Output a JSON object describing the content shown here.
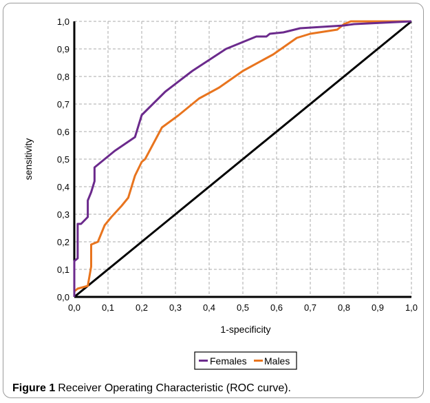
{
  "figure": {
    "label": "Figure 1",
    "caption": "Receiver Operating Characteristic (ROC curve)."
  },
  "chart_data": {
    "type": "line",
    "xlabel": "1-specificity",
    "ylabel": "sensitivity",
    "xlim": [
      0,
      1
    ],
    "ylim": [
      0,
      1
    ],
    "x_ticks": [
      "0,0",
      "0,1",
      "0,2",
      "0,3",
      "0,4",
      "0,5",
      "0,6",
      "0,7",
      "0,8",
      "0,9",
      "1,0"
    ],
    "y_ticks": [
      "0,0",
      "0,1",
      "0,2",
      "0,3",
      "0,4",
      "0,5",
      "0,6",
      "0,7",
      "0,8",
      "0,9",
      "1,0"
    ],
    "grid": true,
    "legend_position": "bottom",
    "series": [
      {
        "name": "Females",
        "color": "#6b2a8c",
        "points": [
          [
            0,
            0
          ],
          [
            0.0,
            0.13
          ],
          [
            0.01,
            0.14
          ],
          [
            0.01,
            0.265
          ],
          [
            0.02,
            0.265
          ],
          [
            0.04,
            0.29
          ],
          [
            0.04,
            0.35
          ],
          [
            0.05,
            0.38
          ],
          [
            0.06,
            0.42
          ],
          [
            0.06,
            0.47
          ],
          [
            0.07,
            0.48
          ],
          [
            0.12,
            0.53
          ],
          [
            0.18,
            0.58
          ],
          [
            0.2,
            0.66
          ],
          [
            0.27,
            0.745
          ],
          [
            0.35,
            0.82
          ],
          [
            0.45,
            0.9
          ],
          [
            0.54,
            0.945
          ],
          [
            0.57,
            0.945
          ],
          [
            0.58,
            0.955
          ],
          [
            0.62,
            0.96
          ],
          [
            0.67,
            0.975
          ],
          [
            0.8,
            0.985
          ],
          [
            0.83,
            0.99
          ],
          [
            1.0,
            1.0
          ]
        ]
      },
      {
        "name": "Males",
        "color": "#e8741e",
        "points": [
          [
            0,
            0
          ],
          [
            0.0,
            0.02
          ],
          [
            0.01,
            0.03
          ],
          [
            0.04,
            0.04
          ],
          [
            0.05,
            0.11
          ],
          [
            0.05,
            0.19
          ],
          [
            0.07,
            0.2
          ],
          [
            0.09,
            0.26
          ],
          [
            0.11,
            0.29
          ],
          [
            0.14,
            0.33
          ],
          [
            0.16,
            0.36
          ],
          [
            0.18,
            0.44
          ],
          [
            0.2,
            0.49
          ],
          [
            0.21,
            0.5
          ],
          [
            0.26,
            0.615
          ],
          [
            0.31,
            0.66
          ],
          [
            0.37,
            0.72
          ],
          [
            0.43,
            0.76
          ],
          [
            0.5,
            0.82
          ],
          [
            0.59,
            0.88
          ],
          [
            0.66,
            0.94
          ],
          [
            0.7,
            0.955
          ],
          [
            0.78,
            0.97
          ],
          [
            0.8,
            0.99
          ],
          [
            0.82,
            1.0
          ],
          [
            1.0,
            1.0
          ]
        ]
      },
      {
        "color": "#000000",
        "points": [
          [
            0,
            0
          ],
          [
            1,
            1
          ]
        ]
      }
    ]
  }
}
